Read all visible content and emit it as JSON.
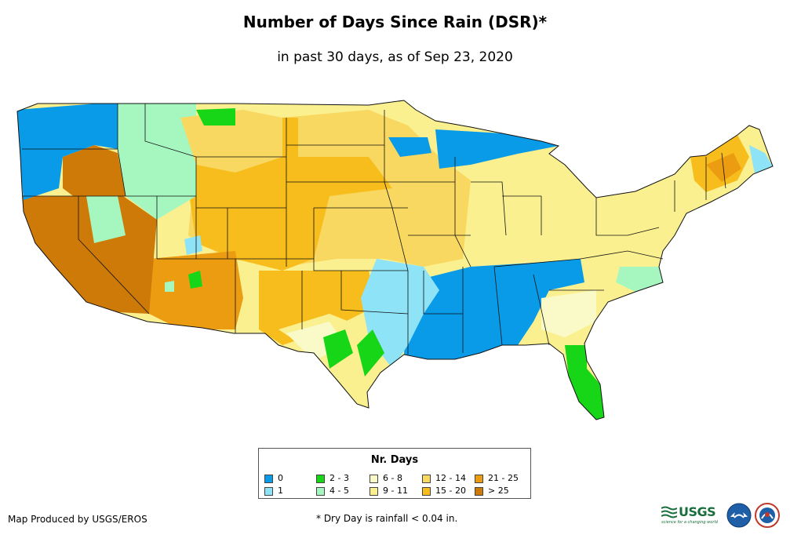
{
  "title": "Number of Days Since Rain (DSR)*",
  "subtitle": "in past 30 days, as of Sep 23, 2020",
  "legend": {
    "title": "Nr. Days",
    "items": [
      {
        "label": "0",
        "color": "#0a9be8"
      },
      {
        "label": "1",
        "color": "#8ee3f7"
      },
      {
        "label": "2 - 3",
        "color": "#17d617"
      },
      {
        "label": "4 - 5",
        "color": "#a6f7bf"
      },
      {
        "label": "6 - 8",
        "color": "#fafac8"
      },
      {
        "label": "9 - 11",
        "color": "#fbf090"
      },
      {
        "label": "12 - 14",
        "color": "#f8d860"
      },
      {
        "label": "15 - 20",
        "color": "#f7bd1c"
      },
      {
        "label": "21 - 25",
        "color": "#ec9c11"
      },
      {
        "label": "> 25",
        "color": "#cd7a08"
      }
    ]
  },
  "producer": "Map Produced by USGS/EROS",
  "footnote": "* Dry Day is rainfall < 0.04 in.",
  "logos": {
    "usgs_text": "USGS",
    "usgs_tagline": "science for a changing world"
  }
}
